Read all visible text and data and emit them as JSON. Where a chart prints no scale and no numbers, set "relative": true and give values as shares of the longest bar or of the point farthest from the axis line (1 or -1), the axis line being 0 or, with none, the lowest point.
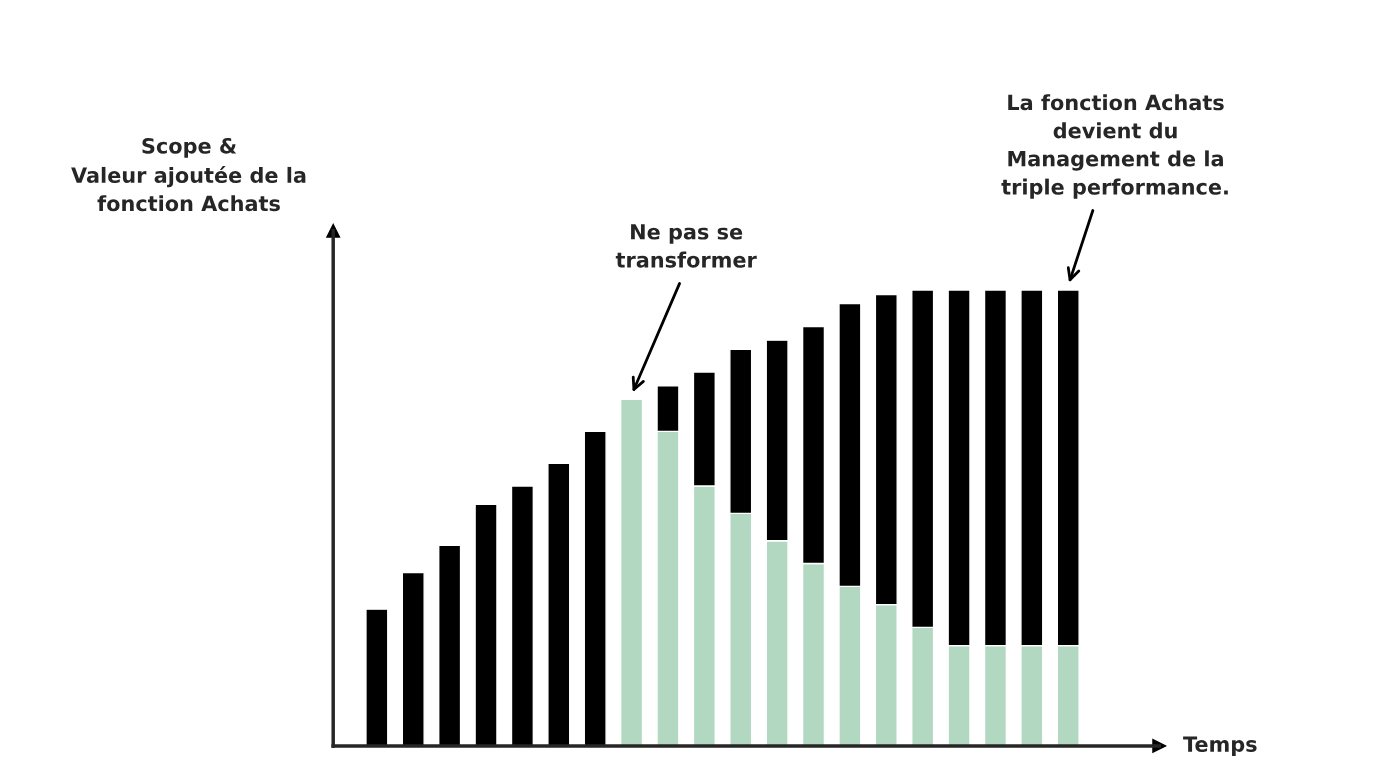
{
  "chart_data": {
    "type": "bar",
    "relative": true,
    "stacked": true,
    "legend": false,
    "xlabel": "Temps",
    "ylabel": "Scope &\nValeur ajoutée de la\nfonction Achats",
    "categories": [
      null,
      null,
      null,
      null,
      null,
      null,
      null,
      null,
      null,
      null,
      null,
      null,
      null,
      null,
      null,
      null,
      null,
      null,
      null,
      null
    ],
    "series": [
      {
        "color": "#b2d8c2",
        "values": [
          null,
          null,
          null,
          null,
          null,
          null,
          null,
          0.76,
          0.69,
          0.57,
          0.51,
          0.45,
          0.4,
          0.35,
          0.31,
          0.26,
          0.22,
          0.22,
          0.22,
          0.22
        ]
      },
      {
        "color": "#000000",
        "values": [
          0.3,
          0.38,
          0.44,
          0.53,
          0.57,
          0.62,
          0.69,
          null,
          0.1,
          0.25,
          0.36,
          0.44,
          0.52,
          0.62,
          0.68,
          0.74,
          0.78,
          0.78,
          0.78,
          0.78
        ]
      }
    ],
    "annotations": [
      "Ne pas se\ntransformer",
      "La fonction Achats\ndevient du\nManagement de la\ntriple performance."
    ]
  }
}
